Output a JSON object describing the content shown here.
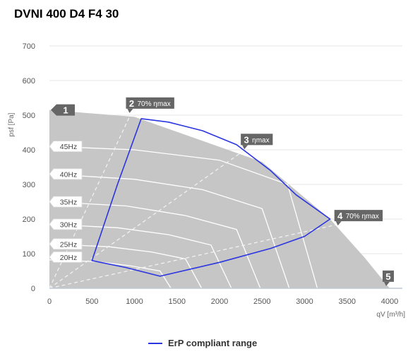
{
  "title": "DVNI 400 D4 F4 30",
  "chart_data": {
    "type": "line",
    "title": "DVNI 400 D4 F4 30",
    "xlabel": "qV [m³/h]",
    "ylabel": "psf [Pa]",
    "xlim": [
      0,
      4000
    ],
    "ylim": [
      0,
      700
    ],
    "x_ticks": [
      "0",
      "500",
      "1000",
      "1500",
      "2000",
      "2500",
      "3000",
      "3500",
      "4000"
    ],
    "y_ticks": [
      "0",
      "100",
      "200",
      "300",
      "400",
      "500",
      "600",
      "700"
    ],
    "grid": true,
    "colors": {
      "area": "#c6c6c6",
      "curves": "#ffffff",
      "erp": "#2b35e0",
      "marker": "#666666"
    },
    "envelope": {
      "x": [
        0,
        0,
        1000,
        2500,
        3300,
        3700,
        4000,
        4000
      ],
      "y": [
        0,
        515,
        495,
        365,
        200,
        90,
        0,
        0
      ]
    },
    "frequency_curves": [
      {
        "name": "45Hz",
        "x": [
          0,
          1000,
          2000,
          2800,
          3150
        ],
        "y": [
          410,
          400,
          370,
          300,
          0
        ]
      },
      {
        "name": "40Hz",
        "x": [
          0,
          1000,
          1800,
          2500,
          2820
        ],
        "y": [
          330,
          315,
          285,
          230,
          0
        ]
      },
      {
        "name": "35Hz",
        "x": [
          0,
          900,
          1600,
          2200,
          2480
        ],
        "y": [
          250,
          238,
          210,
          170,
          0
        ]
      },
      {
        "name": "30Hz",
        "x": [
          0,
          800,
          1400,
          1900,
          2140
        ],
        "y": [
          185,
          175,
          155,
          125,
          0
        ]
      },
      {
        "name": "25Hz",
        "x": [
          0,
          700,
          1200,
          1600,
          1790
        ],
        "y": [
          128,
          120,
          105,
          85,
          0
        ]
      },
      {
        "name": "20Hz",
        "x": [
          0,
          550,
          950,
          1300,
          1430
        ],
        "y": [
          82,
          77,
          65,
          50,
          0
        ]
      }
    ],
    "efficiency_lines": [
      {
        "name": "2 70% ηmax",
        "x": [
          0,
          950
        ],
        "y": [
          0,
          500
        ]
      },
      {
        "name": "3 ηmax",
        "x": [
          0,
          2300
        ],
        "y": [
          0,
          400
        ]
      },
      {
        "name": "4 70% ηmax",
        "x": [
          0,
          3400
        ],
        "y": [
          0,
          185
        ]
      }
    ],
    "erp_compliant_range": {
      "x": [
        500,
        800,
        1080,
        1400,
        1800,
        2200,
        2600,
        2900,
        3300,
        3000,
        2600,
        2000,
        1300,
        900,
        500
      ],
      "y": [
        80,
        300,
        490,
        480,
        455,
        415,
        340,
        270,
        200,
        150,
        115,
        75,
        35,
        60,
        80
      ]
    },
    "markers": [
      {
        "number": "1",
        "x": 0,
        "y": 515
      },
      {
        "number": "2",
        "x": 950,
        "y": 535,
        "label": "70% ηmax"
      },
      {
        "number": "3",
        "x": 2300,
        "y": 430,
        "label": "ηmax"
      },
      {
        "number": "4",
        "x": 3400,
        "y": 210,
        "label": "70% ηmax"
      },
      {
        "number": "5",
        "x": 4000,
        "y": 35
      }
    ],
    "legend": {
      "label": "ErP compliant range",
      "position": "bottom-center"
    }
  }
}
